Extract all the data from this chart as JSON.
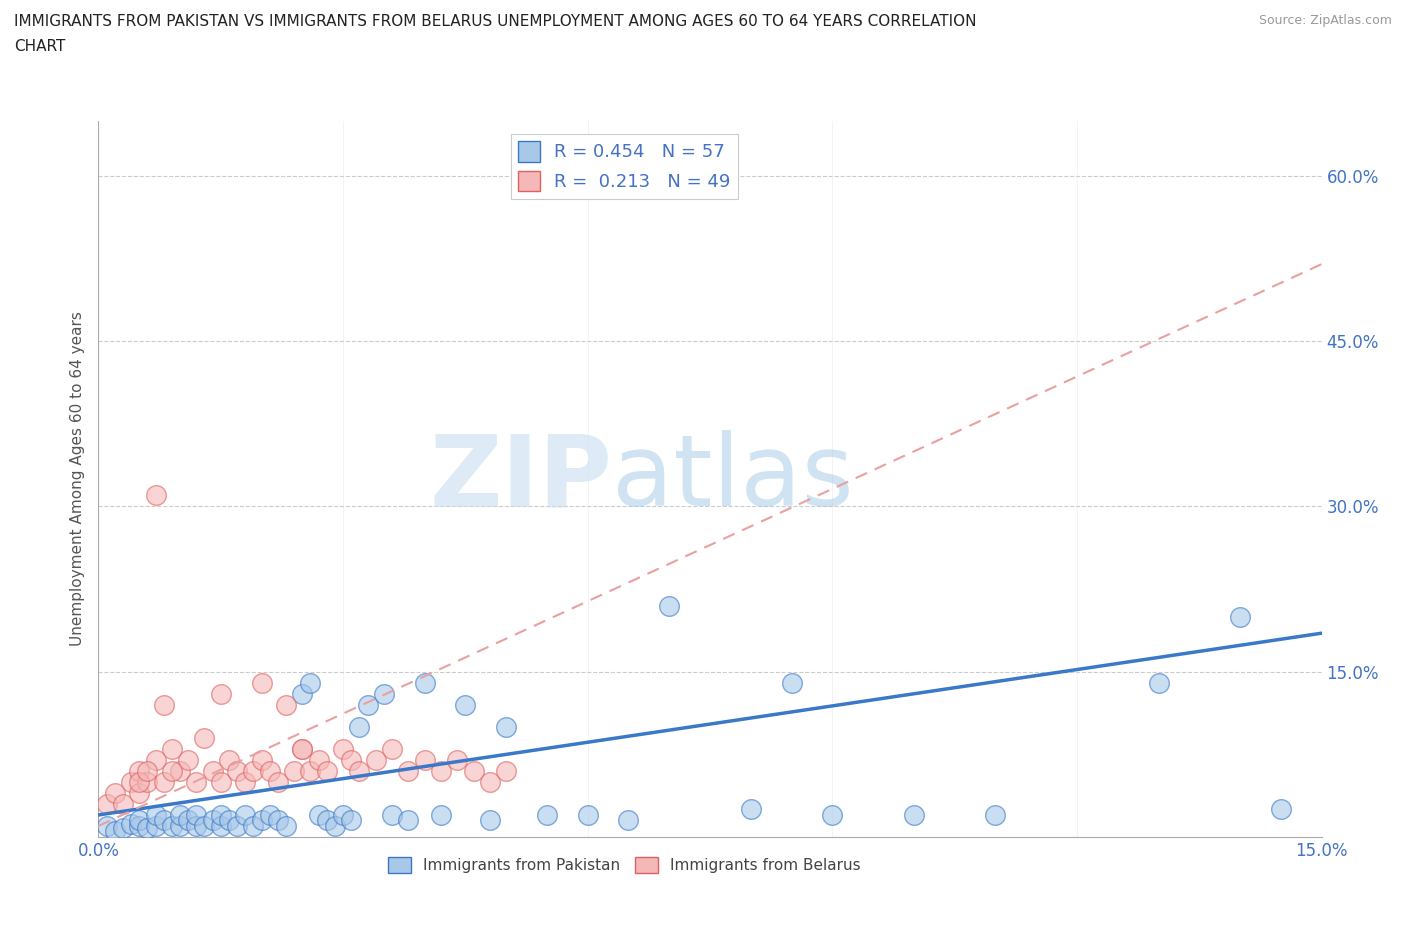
{
  "title": "IMMIGRANTS FROM PAKISTAN VS IMMIGRANTS FROM BELARUS UNEMPLOYMENT AMONG AGES 60 TO 64 YEARS CORRELATION\nCHART",
  "source": "Source: ZipAtlas.com",
  "ylabel": "Unemployment Among Ages 60 to 64 years",
  "xlim": [
    0.0,
    0.15
  ],
  "ylim": [
    0.0,
    0.65
  ],
  "x_ticks": [
    0.0,
    0.03,
    0.06,
    0.09,
    0.12,
    0.15
  ],
  "x_tick_labels": [
    "0.0%",
    "",
    "",
    "",
    "",
    "15.0%"
  ],
  "y_ticks": [
    0.0,
    0.15,
    0.3,
    0.45,
    0.6
  ],
  "y_tick_labels": [
    "",
    "15.0%",
    "30.0%",
    "45.0%",
    "60.0%"
  ],
  "pakistan_color": "#a8c8e8",
  "pakistan_edge": "#3a78c8",
  "belarus_color": "#f4b8b8",
  "belarus_edge": "#e06060",
  "pakistan_R": 0.454,
  "pakistan_N": 57,
  "belarus_R": 0.213,
  "belarus_N": 49,
  "watermark_zip": "ZIP",
  "watermark_atlas": "atlas",
  "pakistan_scatter_x": [
    0.001,
    0.002,
    0.003,
    0.004,
    0.005,
    0.005,
    0.006,
    0.007,
    0.007,
    0.008,
    0.009,
    0.01,
    0.01,
    0.011,
    0.012,
    0.012,
    0.013,
    0.014,
    0.015,
    0.015,
    0.016,
    0.017,
    0.018,
    0.019,
    0.02,
    0.021,
    0.022,
    0.023,
    0.025,
    0.026,
    0.027,
    0.028,
    0.029,
    0.03,
    0.031,
    0.032,
    0.033,
    0.035,
    0.036,
    0.038,
    0.04,
    0.042,
    0.045,
    0.048,
    0.05,
    0.055,
    0.06,
    0.065,
    0.07,
    0.08,
    0.085,
    0.09,
    0.1,
    0.11,
    0.13,
    0.14,
    0.145
  ],
  "pakistan_scatter_y": [
    0.01,
    0.005,
    0.008,
    0.012,
    0.01,
    0.015,
    0.008,
    0.01,
    0.02,
    0.015,
    0.01,
    0.01,
    0.02,
    0.015,
    0.01,
    0.02,
    0.01,
    0.015,
    0.01,
    0.02,
    0.015,
    0.01,
    0.02,
    0.01,
    0.015,
    0.02,
    0.015,
    0.01,
    0.13,
    0.14,
    0.02,
    0.015,
    0.01,
    0.02,
    0.015,
    0.1,
    0.12,
    0.13,
    0.02,
    0.015,
    0.14,
    0.02,
    0.12,
    0.015,
    0.1,
    0.02,
    0.02,
    0.015,
    0.21,
    0.025,
    0.14,
    0.02,
    0.02,
    0.02,
    0.14,
    0.2,
    0.025
  ],
  "belarus_scatter_x": [
    0.001,
    0.002,
    0.003,
    0.004,
    0.005,
    0.005,
    0.006,
    0.007,
    0.008,
    0.009,
    0.01,
    0.011,
    0.012,
    0.013,
    0.014,
    0.015,
    0.016,
    0.017,
    0.018,
    0.019,
    0.02,
    0.021,
    0.022,
    0.023,
    0.024,
    0.025,
    0.026,
    0.027,
    0.028,
    0.03,
    0.031,
    0.032,
    0.034,
    0.036,
    0.038,
    0.04,
    0.042,
    0.044,
    0.046,
    0.048,
    0.05,
    0.015,
    0.02,
    0.025,
    0.007,
    0.008,
    0.009,
    0.005,
    0.006
  ],
  "belarus_scatter_y": [
    0.03,
    0.04,
    0.03,
    0.05,
    0.04,
    0.06,
    0.05,
    0.07,
    0.05,
    0.08,
    0.06,
    0.07,
    0.05,
    0.09,
    0.06,
    0.05,
    0.07,
    0.06,
    0.05,
    0.06,
    0.07,
    0.06,
    0.05,
    0.12,
    0.06,
    0.08,
    0.06,
    0.07,
    0.06,
    0.08,
    0.07,
    0.06,
    0.07,
    0.08,
    0.06,
    0.07,
    0.06,
    0.07,
    0.06,
    0.05,
    0.06,
    0.13,
    0.14,
    0.08,
    0.31,
    0.12,
    0.06,
    0.05,
    0.06
  ],
  "pakistan_line_x": [
    0.0,
    0.15
  ],
  "pakistan_line_y": [
    0.02,
    0.185
  ],
  "belarus_line_x": [
    0.0,
    0.15
  ],
  "belarus_line_y": [
    0.01,
    0.52
  ],
  "grid_color": "#cccccc",
  "background_color": "#ffffff"
}
